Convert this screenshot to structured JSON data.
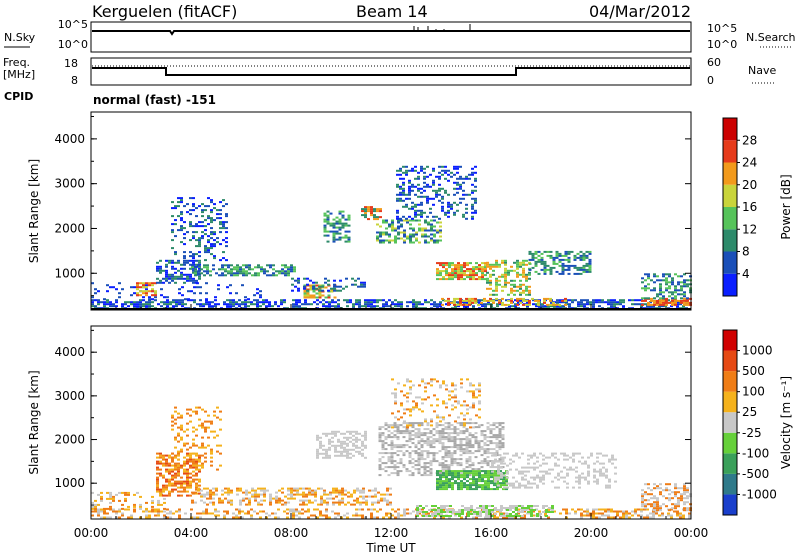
{
  "header": {
    "station": "Kerguelen (fitACF)",
    "beam": "Beam 14",
    "date": "04/Mar/2012"
  },
  "status_panel": {
    "left_label_1": "N.Sky",
    "left_ticks_1": [
      "10^5",
      "10^0"
    ],
    "right_label_1": "N.Search",
    "right_ticks_1": [
      "10^5",
      "10^0"
    ],
    "left_label_2a": "Freq.",
    "left_label_2b": "[MHz]",
    "left_ticks_2": [
      "18",
      "8"
    ],
    "right_label_2": "Nave",
    "right_ticks_2": [
      "60",
      "0"
    ],
    "cpid_label": "CPID",
    "cpid_value": "normal (fast) -151"
  },
  "chart_data": [
    {
      "type": "heatmap",
      "name": "power",
      "ylabel": "Slant Range [km]",
      "yticks": [
        "1000",
        "2000",
        "3000",
        "4000"
      ],
      "ylim": [
        180,
        4600
      ],
      "colorbar_label": "Power [dB]",
      "colorbar_ticks": [
        "4",
        "8",
        "12",
        "16",
        "20",
        "24",
        "28"
      ],
      "colorbar_colors": [
        "#0a1fff",
        "#1a4fb8",
        "#2d8a6a",
        "#56c35a",
        "#c9d43b",
        "#f29a1c",
        "#e63b1b",
        "#cc0000"
      ]
    },
    {
      "type": "heatmap",
      "name": "velocity",
      "ylabel": "Slant Range [km]",
      "yticks": [
        "1000",
        "2000",
        "3000",
        "4000"
      ],
      "ylim": [
        180,
        4600
      ],
      "colorbar_label": "Velocity [m s⁻¹]",
      "colorbar_ticks": [
        "1000",
        "500",
        "100",
        "25",
        "-25",
        "-100",
        "-500",
        "-1000"
      ],
      "colorbar_colors": [
        "#1a3fcc",
        "#2f7a8a",
        "#3aa05a",
        "#66d03a",
        "#c8c8c8",
        "#f5b21c",
        "#ef7d16",
        "#e64a14",
        "#d00000"
      ]
    }
  ],
  "x_axis": {
    "ticks": [
      "00:00",
      "04:00",
      "08:00",
      "12:00",
      "16:00",
      "20:00",
      "00:00"
    ],
    "label": "Time UT"
  },
  "scatter_regions": {
    "power": [
      {
        "t": [
          0.0,
          24.0
        ],
        "r": [
          200,
          420
        ],
        "colors": [
          "#0a1fff",
          "#1a4fb8",
          "#2d8a6a"
        ],
        "d": 0.55
      },
      {
        "t": [
          0.0,
          7.0
        ],
        "r": [
          400,
          800
        ],
        "colors": [
          "#1a4fb8",
          "#0a1fff"
        ],
        "d": 0.12
      },
      {
        "t": [
          1.8,
          2.6
        ],
        "r": [
          500,
          800
        ],
        "colors": [
          "#f29a1c",
          "#e63b1b",
          "#c9d43b"
        ],
        "d": 0.6
      },
      {
        "t": [
          2.6,
          4.4
        ],
        "r": [
          800,
          1300
        ],
        "colors": [
          "#1a4fb8",
          "#2d8a6a",
          "#0a1fff"
        ],
        "d": 0.55
      },
      {
        "t": [
          3.2,
          5.4
        ],
        "r": [
          1300,
          2700
        ],
        "colors": [
          "#1a4fb8",
          "#0a1fff",
          "#2d8a6a"
        ],
        "d": 0.28
      },
      {
        "t": [
          4.0,
          8.2
        ],
        "r": [
          950,
          1200
        ],
        "colors": [
          "#1a4fb8",
          "#2d8a6a",
          "#56c35a"
        ],
        "d": 0.6
      },
      {
        "t": [
          8.5,
          9.8
        ],
        "r": [
          450,
          750
        ],
        "colors": [
          "#f29a1c",
          "#e63b1b",
          "#c9d43b",
          "#56c35a"
        ],
        "d": 0.6
      },
      {
        "t": [
          8.0,
          11.0
        ],
        "r": [
          600,
          900
        ],
        "colors": [
          "#1a4fb8",
          "#2d8a6a",
          "#0a1fff"
        ],
        "d": 0.35
      },
      {
        "t": [
          9.3,
          10.3
        ],
        "r": [
          1700,
          2400
        ],
        "colors": [
          "#1a4fb8",
          "#56c35a",
          "#2d8a6a"
        ],
        "d": 0.45
      },
      {
        "t": [
          10.8,
          11.6
        ],
        "r": [
          2200,
          2500
        ],
        "colors": [
          "#e63b1b",
          "#f29a1c",
          "#2d8a6a"
        ],
        "d": 0.55
      },
      {
        "t": [
          11.4,
          14.0
        ],
        "r": [
          1700,
          2200
        ],
        "colors": [
          "#1a4fb8",
          "#56c35a",
          "#2d8a6a",
          "#c9d43b"
        ],
        "d": 0.5
      },
      {
        "t": [
          12.2,
          15.4
        ],
        "r": [
          2200,
          3400
        ],
        "colors": [
          "#1a4fb8",
          "#0a1fff",
          "#2d8a6a"
        ],
        "d": 0.3
      },
      {
        "t": [
          13.8,
          15.8
        ],
        "r": [
          850,
          1250
        ],
        "colors": [
          "#e63b1b",
          "#f29a1c",
          "#c9d43b",
          "#56c35a"
        ],
        "d": 0.75
      },
      {
        "t": [
          15.8,
          17.5
        ],
        "r": [
          500,
          1300
        ],
        "colors": [
          "#56c35a",
          "#c9d43b",
          "#f29a1c",
          "#2d8a6a"
        ],
        "d": 0.5
      },
      {
        "t": [
          14.0,
          19.0
        ],
        "r": [
          280,
          450
        ],
        "colors": [
          "#e63b1b",
          "#f29a1c",
          "#c9d43b"
        ],
        "d": 0.55
      },
      {
        "t": [
          17.5,
          20.0
        ],
        "r": [
          1000,
          1500
        ],
        "colors": [
          "#2d8a6a",
          "#56c35a",
          "#1a4fb8"
        ],
        "d": 0.5
      },
      {
        "t": [
          22.0,
          24.0
        ],
        "r": [
          280,
          450
        ],
        "colors": [
          "#e63b1b",
          "#f29a1c"
        ],
        "d": 0.8
      },
      {
        "t": [
          22.0,
          24.0
        ],
        "r": [
          450,
          1000
        ],
        "colors": [
          "#1a4fb8",
          "#2d8a6a",
          "#56c35a"
        ],
        "d": 0.45
      }
    ],
    "velocity": [
      {
        "t": [
          0.0,
          24.0
        ],
        "r": [
          200,
          420
        ],
        "colors": [
          "#f5b21c",
          "#c8c8c8",
          "#ef7d16"
        ],
        "d": 0.4
      },
      {
        "t": [
          0.0,
          3.0
        ],
        "r": [
          400,
          800
        ],
        "colors": [
          "#ef7d16",
          "#f5b21c",
          "#c8c8c8"
        ],
        "d": 0.3
      },
      {
        "t": [
          2.6,
          4.4
        ],
        "r": [
          700,
          1700
        ],
        "colors": [
          "#ef7d16",
          "#f5b21c",
          "#e64a14"
        ],
        "d": 0.55
      },
      {
        "t": [
          3.2,
          5.2
        ],
        "r": [
          1300,
          2800
        ],
        "colors": [
          "#ef7d16",
          "#f5b21c"
        ],
        "d": 0.25
      },
      {
        "t": [
          4.0,
          12.0
        ],
        "r": [
          500,
          900
        ],
        "colors": [
          "#c8c8c8",
          "#f5b21c",
          "#ef7d16"
        ],
        "d": 0.45
      },
      {
        "t": [
          9.0,
          11.0
        ],
        "r": [
          1600,
          2200
        ],
        "colors": [
          "#c8c8c8"
        ],
        "d": 0.5
      },
      {
        "t": [
          11.5,
          16.5
        ],
        "r": [
          1200,
          2400
        ],
        "colors": [
          "#c8c8c8",
          "#a8a8a8"
        ],
        "d": 0.5
      },
      {
        "t": [
          12.0,
          15.5
        ],
        "r": [
          2300,
          3400
        ],
        "colors": [
          "#c8c8c8",
          "#ef7d16",
          "#f5b21c"
        ],
        "d": 0.22
      },
      {
        "t": [
          13.8,
          16.6
        ],
        "r": [
          850,
          1300
        ],
        "colors": [
          "#66d03a",
          "#3aa05a"
        ],
        "d": 0.85
      },
      {
        "t": [
          13.0,
          18.5
        ],
        "r": [
          250,
          500
        ],
        "colors": [
          "#66d03a",
          "#c8c8c8"
        ],
        "d": 0.55
      },
      {
        "t": [
          16.0,
          21.0
        ],
        "r": [
          900,
          1700
        ],
        "colors": [
          "#c8c8c8"
        ],
        "d": 0.35
      },
      {
        "t": [
          22.0,
          24.0
        ],
        "r": [
          400,
          1000
        ],
        "colors": [
          "#c8c8c8",
          "#ef7d16"
        ],
        "d": 0.45
      }
    ]
  }
}
